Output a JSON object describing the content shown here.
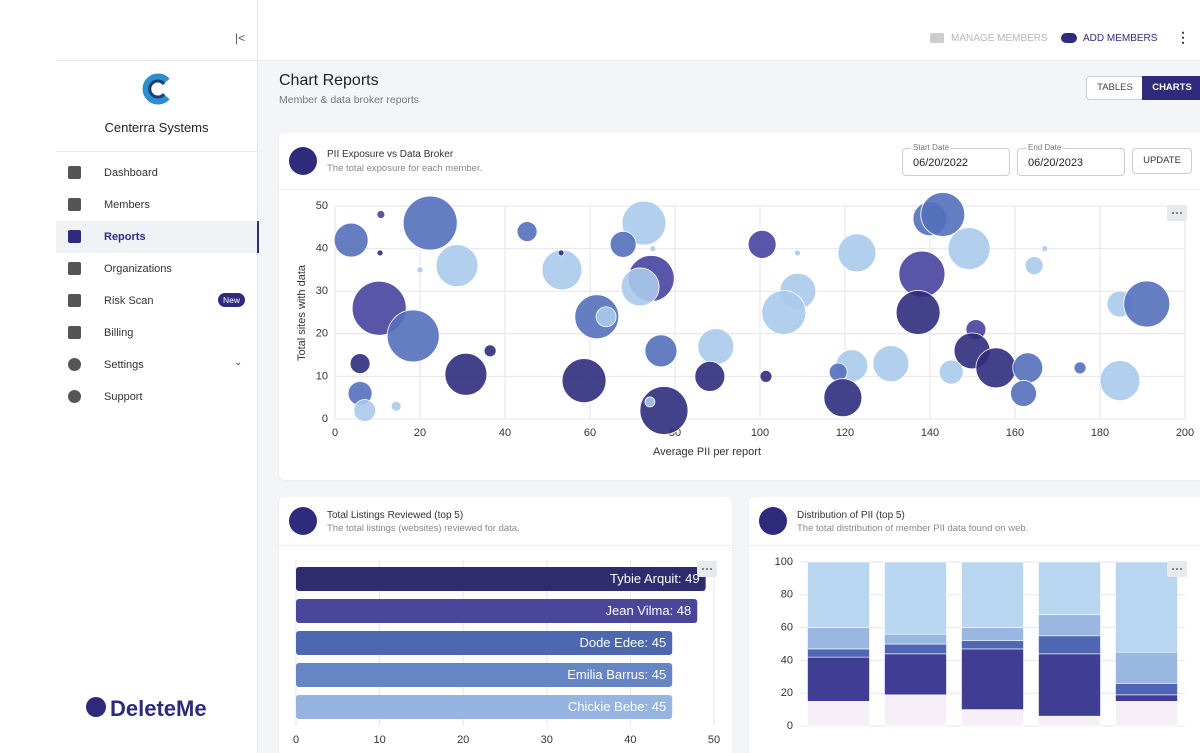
{
  "sidebar": {
    "org_name": "Centerra Systems",
    "nav": [
      "Dashboard",
      "Members",
      "Reports",
      "Organizations",
      "Risk Scan",
      "Billing",
      "Settings",
      "Support"
    ],
    "badge": "New",
    "brand": "DeleteMe"
  },
  "topbar": {
    "manage_members": "MANAGE MEMBERS",
    "add_members": "ADD MEMBERS"
  },
  "header": {
    "title": "Chart Reports",
    "subtitle": "Member & data broker reports",
    "tabs": [
      "TABLES",
      "CHARTS"
    ]
  },
  "cards": [
    {
      "title": "PII Exposure vs Data Broker",
      "subtitle": "The total exposure for each member."
    },
    {
      "title": "Total Listings Reviewed (top 5)",
      "subtitle": "The total listings (websites) reviewed for data."
    },
    {
      "title": "Distribution of PII (top 5)",
      "subtitle": "The total distribution of member PII data found on web."
    }
  ],
  "date_filter": {
    "start_label": "Start Date",
    "start": "06/20/2022",
    "end_label": "End Date",
    "end": "06/20/2023",
    "button": "UPDATE"
  },
  "chart_data": [
    {
      "type": "scatter",
      "x_label": "Average PII per report",
      "y_label": "Total sites with data",
      "x": [
        3.8,
        10.8,
        10.6,
        22.4,
        20,
        28.7,
        10.4,
        18.4,
        5.9,
        5.9,
        7,
        14.4,
        30.8,
        36.5,
        45.2,
        53.4,
        53.2,
        61.6,
        63.8,
        58.6,
        72.7,
        67.8,
        74.8,
        74.4,
        71.8,
        76.7,
        77.4,
        74.1,
        89.6,
        88.2,
        100.5,
        108.8,
        108.9,
        105.6,
        101.4,
        122.8,
        121.6,
        118.4,
        119.5,
        130.8,
        140,
        143,
        149.2,
        138.1,
        137.2,
        150.8,
        149.9,
        155.5,
        163,
        145,
        162,
        164.5,
        167,
        175.3,
        184.7,
        191,
        184.7
      ],
      "values": [
        42,
        48,
        39,
        46,
        35,
        36,
        26,
        19.5,
        13,
        6,
        2,
        3,
        10.5,
        16,
        44,
        35,
        39,
        24,
        24,
        9,
        46,
        41,
        40,
        33,
        31,
        16,
        2,
        4,
        17,
        10,
        41,
        39,
        30,
        25,
        10,
        39,
        12.5,
        11,
        5,
        13,
        47,
        48,
        40,
        34,
        25,
        21,
        16,
        12,
        12,
        11,
        6,
        36,
        40,
        12,
        27,
        27,
        9
      ],
      "sizes": [
        17,
        4,
        3,
        27,
        3,
        21,
        27,
        26,
        10,
        12,
        11,
        5,
        21,
        6,
        10,
        20,
        3,
        22,
        10,
        22,
        22,
        13,
        3,
        23,
        19,
        16,
        24,
        5,
        18,
        15,
        14,
        3,
        18,
        22,
        6,
        19,
        16,
        9,
        19,
        18,
        17,
        22,
        21,
        23,
        22,
        10,
        18,
        20,
        15,
        12,
        13,
        9,
        3,
        6,
        13,
        23,
        20
      ],
      "colors": [
        "#5470bb",
        "#4744a0",
        "#2f2c7c",
        "#5470bb",
        "#aacaeb",
        "#aacaeb",
        "#4744a0",
        "#5470bb",
        "#2f2c7c",
        "#5470bb",
        "#aacaeb",
        "#aacaeb",
        "#2f2c7c",
        "#2f2c7c",
        "#5470bb",
        "#aacaeb",
        "#2f2c7c",
        "#5470bb",
        "#aacaeb",
        "#2f2c7c",
        "#aacaeb",
        "#5470bb",
        "#aacaeb",
        "#4744a0",
        "#aacaeb",
        "#5470bb",
        "#2f2c7c",
        "#aacaeb",
        "#aacaeb",
        "#2f2c7c",
        "#4744a0",
        "#aacaeb",
        "#aacaeb",
        "#aacaeb",
        "#2f2c7c",
        "#aacaeb",
        "#aacaeb",
        "#5470bb",
        "#2f2c7c",
        "#aacaeb",
        "#5470bb",
        "#5470bb",
        "#aacaeb",
        "#4744a0",
        "#2f2c7c",
        "#4744a0",
        "#2f2c7c",
        "#2f2c7c",
        "#5470bb",
        "#aacaeb",
        "#5470bb",
        "#aacaeb",
        "#aacaeb",
        "#5470bb",
        "#aacaeb",
        "#5470bb",
        "#aacaeb"
      ],
      "xlim": [
        0,
        200
      ],
      "ylim": [
        0,
        50
      ],
      "xticks": [
        0,
        20,
        40,
        60,
        80,
        100,
        120,
        140,
        160,
        180,
        200
      ],
      "yticks": [
        0,
        10,
        20,
        30,
        40,
        50
      ],
      "grid": true
    },
    {
      "type": "bar",
      "orientation": "horizontal",
      "values": [
        49,
        48,
        45,
        45,
        45
      ],
      "value_labels": [
        "Tybie Arquit: 49",
        "Jean Vilma: 48",
        "Dode Edee: 45",
        "Emilia Barrus: 45",
        "Chickie Bebe: 45"
      ],
      "colors": [
        "#2e2b6e",
        "#4a469c",
        "#4d68b0",
        "#6585c5",
        "#95b4e1"
      ],
      "xlim": [
        0,
        50
      ],
      "xticks": [
        0,
        10,
        20,
        30,
        40,
        50
      ],
      "grid": true
    },
    {
      "type": "stacked_bar",
      "series": [
        {
          "color": "#f6eff8",
          "values": [
            15,
            19,
            10,
            6,
            15
          ]
        },
        {
          "color": "#403d95",
          "values": [
            27,
            25,
            37,
            38,
            4
          ]
        },
        {
          "color": "#4f67b3",
          "values": [
            5,
            6,
            5,
            11,
            7
          ]
        },
        {
          "color": "#9ab7e1",
          "values": [
            13,
            6,
            8,
            13,
            19
          ]
        },
        {
          "color": "#b8d6ef",
          "values": [
            40,
            44,
            40,
            32,
            55
          ]
        }
      ],
      "ylim": [
        0,
        100
      ],
      "yticks": [
        0,
        20,
        40,
        60,
        80,
        100
      ],
      "grid": true
    }
  ]
}
